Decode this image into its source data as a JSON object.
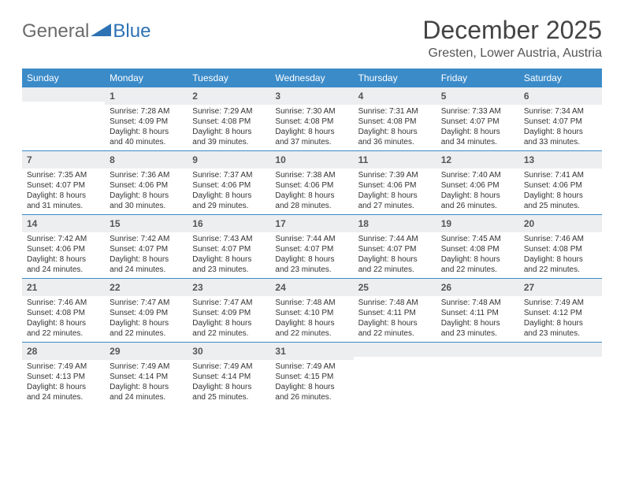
{
  "logo": {
    "text1": "General",
    "text2": "Blue"
  },
  "title": "December 2025",
  "location": "Gresten, Lower Austria, Austria",
  "colors": {
    "header_bg": "#3b8bc9",
    "header_text": "#ffffff",
    "daynum_bg": "#eceef0",
    "divider": "#3b8bc9",
    "logo_gray": "#6b6b6b",
    "logo_blue": "#2d72b5"
  },
  "day_headers": [
    "Sunday",
    "Monday",
    "Tuesday",
    "Wednesday",
    "Thursday",
    "Friday",
    "Saturday"
  ],
  "weeks": [
    [
      {
        "empty": true
      },
      {
        "n": "1",
        "sr": "7:28 AM",
        "ss": "4:09 PM",
        "dl": "8 hours and 40 minutes."
      },
      {
        "n": "2",
        "sr": "7:29 AM",
        "ss": "4:08 PM",
        "dl": "8 hours and 39 minutes."
      },
      {
        "n": "3",
        "sr": "7:30 AM",
        "ss": "4:08 PM",
        "dl": "8 hours and 37 minutes."
      },
      {
        "n": "4",
        "sr": "7:31 AM",
        "ss": "4:08 PM",
        "dl": "8 hours and 36 minutes."
      },
      {
        "n": "5",
        "sr": "7:33 AM",
        "ss": "4:07 PM",
        "dl": "8 hours and 34 minutes."
      },
      {
        "n": "6",
        "sr": "7:34 AM",
        "ss": "4:07 PM",
        "dl": "8 hours and 33 minutes."
      }
    ],
    [
      {
        "n": "7",
        "sr": "7:35 AM",
        "ss": "4:07 PM",
        "dl": "8 hours and 31 minutes."
      },
      {
        "n": "8",
        "sr": "7:36 AM",
        "ss": "4:06 PM",
        "dl": "8 hours and 30 minutes."
      },
      {
        "n": "9",
        "sr": "7:37 AM",
        "ss": "4:06 PM",
        "dl": "8 hours and 29 minutes."
      },
      {
        "n": "10",
        "sr": "7:38 AM",
        "ss": "4:06 PM",
        "dl": "8 hours and 28 minutes."
      },
      {
        "n": "11",
        "sr": "7:39 AM",
        "ss": "4:06 PM",
        "dl": "8 hours and 27 minutes."
      },
      {
        "n": "12",
        "sr": "7:40 AM",
        "ss": "4:06 PM",
        "dl": "8 hours and 26 minutes."
      },
      {
        "n": "13",
        "sr": "7:41 AM",
        "ss": "4:06 PM",
        "dl": "8 hours and 25 minutes."
      }
    ],
    [
      {
        "n": "14",
        "sr": "7:42 AM",
        "ss": "4:06 PM",
        "dl": "8 hours and 24 minutes."
      },
      {
        "n": "15",
        "sr": "7:42 AM",
        "ss": "4:07 PM",
        "dl": "8 hours and 24 minutes."
      },
      {
        "n": "16",
        "sr": "7:43 AM",
        "ss": "4:07 PM",
        "dl": "8 hours and 23 minutes."
      },
      {
        "n": "17",
        "sr": "7:44 AM",
        "ss": "4:07 PM",
        "dl": "8 hours and 23 minutes."
      },
      {
        "n": "18",
        "sr": "7:44 AM",
        "ss": "4:07 PM",
        "dl": "8 hours and 22 minutes."
      },
      {
        "n": "19",
        "sr": "7:45 AM",
        "ss": "4:08 PM",
        "dl": "8 hours and 22 minutes."
      },
      {
        "n": "20",
        "sr": "7:46 AM",
        "ss": "4:08 PM",
        "dl": "8 hours and 22 minutes."
      }
    ],
    [
      {
        "n": "21",
        "sr": "7:46 AM",
        "ss": "4:08 PM",
        "dl": "8 hours and 22 minutes."
      },
      {
        "n": "22",
        "sr": "7:47 AM",
        "ss": "4:09 PM",
        "dl": "8 hours and 22 minutes."
      },
      {
        "n": "23",
        "sr": "7:47 AM",
        "ss": "4:09 PM",
        "dl": "8 hours and 22 minutes."
      },
      {
        "n": "24",
        "sr": "7:48 AM",
        "ss": "4:10 PM",
        "dl": "8 hours and 22 minutes."
      },
      {
        "n": "25",
        "sr": "7:48 AM",
        "ss": "4:11 PM",
        "dl": "8 hours and 22 minutes."
      },
      {
        "n": "26",
        "sr": "7:48 AM",
        "ss": "4:11 PM",
        "dl": "8 hours and 23 minutes."
      },
      {
        "n": "27",
        "sr": "7:49 AM",
        "ss": "4:12 PM",
        "dl": "8 hours and 23 minutes."
      }
    ],
    [
      {
        "n": "28",
        "sr": "7:49 AM",
        "ss": "4:13 PM",
        "dl": "8 hours and 24 minutes."
      },
      {
        "n": "29",
        "sr": "7:49 AM",
        "ss": "4:14 PM",
        "dl": "8 hours and 24 minutes."
      },
      {
        "n": "30",
        "sr": "7:49 AM",
        "ss": "4:14 PM",
        "dl": "8 hours and 25 minutes."
      },
      {
        "n": "31",
        "sr": "7:49 AM",
        "ss": "4:15 PM",
        "dl": "8 hours and 26 minutes."
      },
      {
        "empty": true
      },
      {
        "empty": true
      },
      {
        "empty": true
      }
    ]
  ],
  "labels": {
    "sunrise": "Sunrise:",
    "sunset": "Sunset:",
    "daylight": "Daylight:"
  }
}
